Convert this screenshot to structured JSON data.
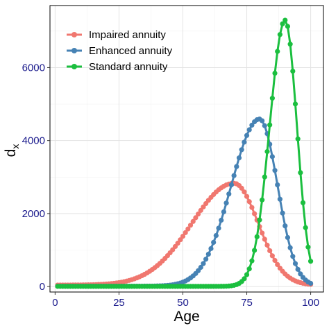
{
  "chart_data": {
    "type": "line",
    "title": "",
    "xlabel": "Age",
    "ylabel": "d",
    "ylabel_sub": "x",
    "xlim": [
      -2,
      105
    ],
    "ylim": [
      -150,
      7700
    ],
    "xticks": [
      0,
      25,
      50,
      75,
      100
    ],
    "yticks": [
      0,
      2000,
      4000,
      6000
    ],
    "grid": true,
    "legend_position": "top-left",
    "series": [
      {
        "name": "Impaired annuity",
        "color": "#f0776f",
        "peak_age": 70,
        "peak_value": 2830,
        "sigma_left": 16.5,
        "sigma_right": 9.5,
        "baseline": 40
      },
      {
        "name": "Enhanced annuity",
        "color": "#4682b4",
        "peak_age": 80,
        "peak_value": 4590,
        "sigma_left": 11.0,
        "sigma_right": 7.0,
        "baseline": 10
      },
      {
        "name": "Standard annuity",
        "color": "#1bbf3f",
        "peak_age": 90,
        "peak_value": 7300,
        "sigma_left": 6.0,
        "sigma_right": 4.6,
        "baseline": 5
      }
    ]
  }
}
